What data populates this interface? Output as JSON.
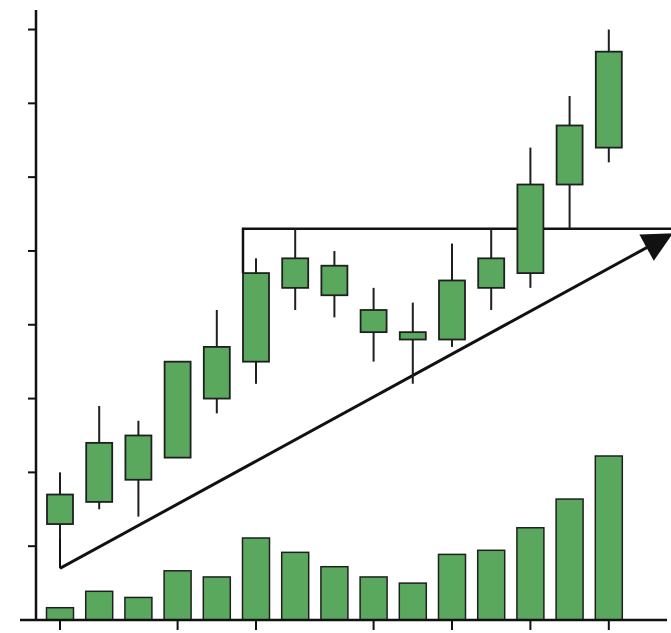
{
  "chart_data": {
    "type": "candlestick",
    "title": "",
    "xlabel": "",
    "ylabel": "",
    "grid": false,
    "legend": "none",
    "price_ylim": [
      0,
      8.4
    ],
    "volume_ylim": [
      0,
      10
    ],
    "y_tick_values": [
      0,
      1,
      2,
      3,
      4,
      5,
      6,
      7,
      8
    ],
    "x_tick_indices": [
      0,
      3,
      5,
      8,
      10,
      12,
      14
    ],
    "colors": {
      "candle_fill": "#5aa85e",
      "candle_stroke": "#1f1f1f",
      "volume_fill": "#5aa85e",
      "line": "#111111"
    },
    "candles": [
      {
        "open": 1.3,
        "high": 2.0,
        "low": 1.1,
        "close": 1.7
      },
      {
        "open": 1.6,
        "high": 2.9,
        "low": 1.5,
        "close": 2.4
      },
      {
        "open": 1.9,
        "high": 2.7,
        "low": 1.4,
        "close": 2.5
      },
      {
        "open": 2.2,
        "high": 3.5,
        "low": 2.2,
        "close": 3.5
      },
      {
        "open": 3.0,
        "high": 4.2,
        "low": 2.8,
        "close": 3.7
      },
      {
        "open": 3.5,
        "high": 4.9,
        "low": 3.2,
        "close": 4.7
      },
      {
        "open": 4.5,
        "high": 5.3,
        "low": 4.2,
        "close": 4.9
      },
      {
        "open": 4.4,
        "high": 5.0,
        "low": 4.1,
        "close": 4.8
      },
      {
        "open": 4.2,
        "high": 4.5,
        "low": 3.5,
        "close": 3.9
      },
      {
        "open": 3.8,
        "high": 4.3,
        "low": 3.2,
        "close": 3.9
      },
      {
        "open": 3.8,
        "high": 5.1,
        "low": 3.7,
        "close": 4.6
      },
      {
        "open": 4.5,
        "high": 5.3,
        "low": 4.2,
        "close": 4.9
      },
      {
        "open": 4.7,
        "high": 6.4,
        "low": 4.5,
        "close": 5.9
      },
      {
        "open": 5.9,
        "high": 7.1,
        "low": 5.3,
        "close": 6.7
      },
      {
        "open": 6.4,
        "high": 8.0,
        "low": 6.2,
        "close": 7.7
      }
    ],
    "volume": [
      0.6,
      1.4,
      1.1,
      2.4,
      2.1,
      4.0,
      3.3,
      2.6,
      2.1,
      1.8,
      3.2,
      3.4,
      4.5,
      5.9,
      8.0
    ],
    "resistance_level": 5.3,
    "resistance_start_index": 5,
    "trend_arrow": {
      "from": {
        "index": 0,
        "price": 0.7
      },
      "to": {
        "index": 15.5,
        "price": 5.2
      }
    }
  }
}
